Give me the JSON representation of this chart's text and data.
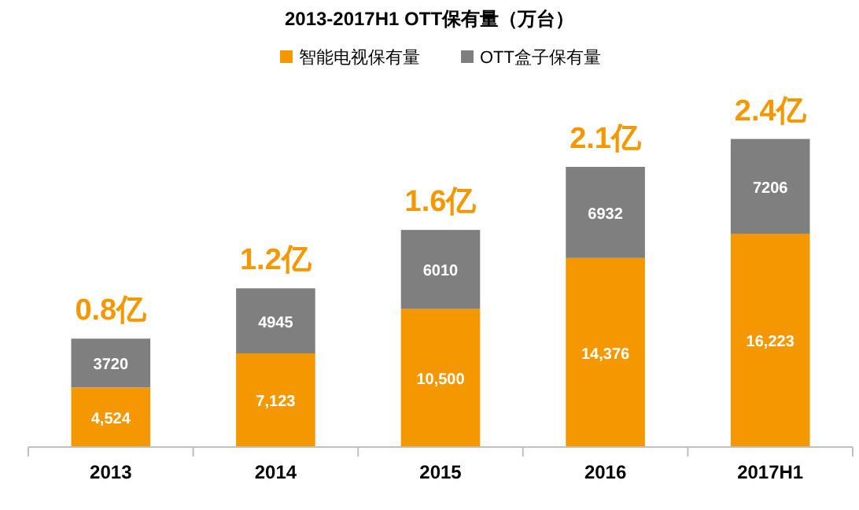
{
  "chart_data": {
    "type": "bar",
    "title": "2013-2017H1 OTT保有量（万台）",
    "categories": [
      "2013",
      "2014",
      "2015",
      "2016",
      "2017H1"
    ],
    "stacked": true,
    "data_labels": true,
    "legend": "top",
    "annotations": [
      {
        "text": "0.8亿",
        "x": "2013",
        "y": 8244
      },
      {
        "text": "1.2亿",
        "x": "2014",
        "y": 12068
      },
      {
        "text": "1.6亿",
        "x": "2015",
        "y": 16510
      },
      {
        "text": "2.1亿",
        "x": "2016",
        "y": 21308
      },
      {
        "text": "2.4亿",
        "x": "2017H1",
        "y": 23429
      }
    ],
    "series": [
      {
        "name": "智能电视保有量",
        "color": "#f39800",
        "values": [
          4524,
          7123,
          10500,
          14376,
          16223
        ],
        "value_labels": [
          "4,524",
          "7,123",
          "10,500",
          "14,376",
          "16,223"
        ]
      },
      {
        "name": "OTT盒子保有量",
        "color": "#7f7f7f",
        "values": [
          3720,
          4945,
          6010,
          6932,
          7206
        ],
        "value_labels": [
          "3720",
          "4945",
          "6010",
          "6932",
          "7206"
        ]
      }
    ]
  }
}
